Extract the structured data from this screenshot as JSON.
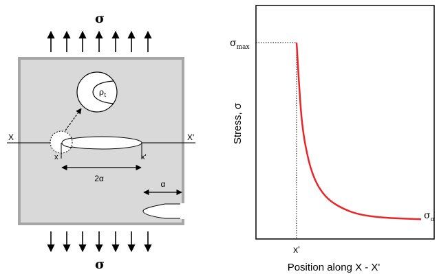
{
  "plate": {
    "sigma_top": "σ",
    "sigma_bottom": "σ",
    "x_left": "X",
    "x_right": "X'",
    "crack_left": "x",
    "crack_right": "x'",
    "length_label": "2α",
    "edge_label": "α",
    "rho": "ρ",
    "rho_sub": "t"
  },
  "graph": {
    "ylabel": "Stress, σ",
    "xlabel": "Position along X - X'",
    "xtick": "x'",
    "smax": "σ",
    "smax_sub": "max",
    "s0": "σ",
    "s0_sub": "o"
  },
  "colors": {
    "plate_fill": "#d9d9d9",
    "plate_border": "#a6a6a6",
    "curve": "#e8262a"
  },
  "chart_data": {
    "type": "line",
    "xlabel": "Position along X - X'",
    "ylabel": "Stress, σ",
    "tick_labels": [
      "x'",
      "σmax",
      "σo"
    ],
    "series": [
      {
        "values": [
          1.0,
          0.62,
          0.42,
          0.3,
          0.22,
          0.17,
          0.13,
          0.11,
          0.1
        ]
      }
    ],
    "x": [
      0,
      0.04,
      0.09,
      0.15,
      0.23,
      0.33,
      0.48,
      0.68,
      1.0
    ]
  }
}
